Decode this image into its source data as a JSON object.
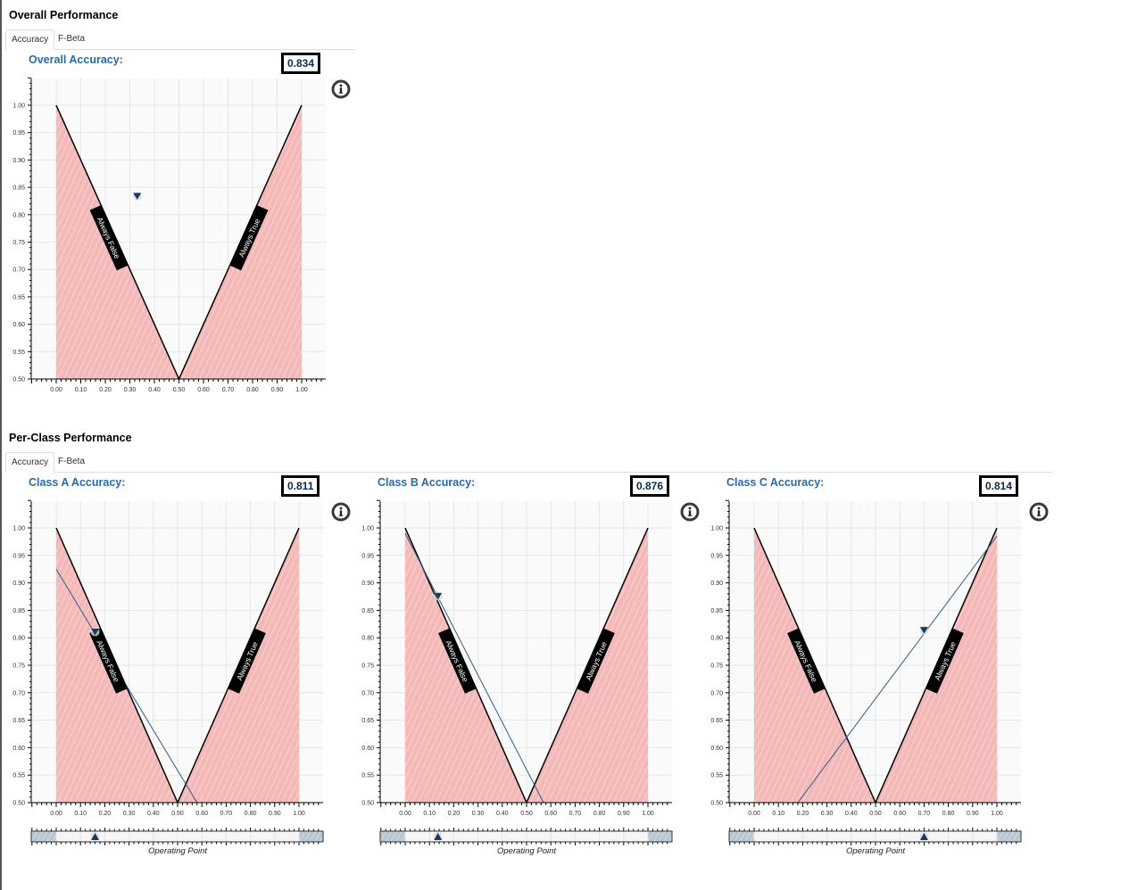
{
  "overall": {
    "section_title": "Overall Performance",
    "tabs": [
      {
        "label": "Accuracy",
        "active": true
      },
      {
        "label": "F-Beta",
        "active": false
      }
    ],
    "panel": {
      "title": "Overall Accuracy:",
      "value": "0.834"
    }
  },
  "per_class": {
    "section_title": "Per-Class Performance",
    "tabs": [
      {
        "label": "Accuracy",
        "active": true
      },
      {
        "label": "F-Beta",
        "active": false
      }
    ],
    "panels": [
      {
        "title": "Class A Accuracy:",
        "value": "0.811"
      },
      {
        "title": "Class B Accuracy:",
        "value": "0.876"
      },
      {
        "title": "Class C Accuracy:",
        "value": "0.814"
      }
    ],
    "slider_label": "Operating Point"
  },
  "annotations": {
    "always_false": "Always False",
    "always_true": "Always True"
  },
  "colors": {
    "accent_title": "#2a6aa8",
    "marker": "#1b3a5c",
    "region_fill": "#f4b8b8",
    "baseline_line": "#000000",
    "model_line": "#2e5d85",
    "slider_track": "#f6f6f6",
    "slider_hatch": "#b8c6d2"
  },
  "chart_data": [
    {
      "type": "line",
      "title": "Overall Accuracy",
      "xlabel": "",
      "ylabel": "",
      "xlim": [
        -0.1,
        1.1
      ],
      "ylim": [
        0.5,
        1.05
      ],
      "x_ticks": [
        "0.00",
        "0.10",
        "0.20",
        "0.30",
        "0.40",
        "0.50",
        "0.60",
        "0.70",
        "0.80",
        "0.90",
        "1.00"
      ],
      "y_ticks": [
        "0.50",
        "0.55",
        "0.60",
        "0.65",
        "0.70",
        "0.75",
        "0.80",
        "0.85",
        "0.90",
        "0.95",
        "1.00"
      ],
      "series": [
        {
          "name": "Always False",
          "x": [
            0,
            0.5
          ],
          "y": [
            1.0,
            0.5
          ]
        },
        {
          "name": "Always True",
          "x": [
            0.5,
            1.0
          ],
          "y": [
            0.5,
            1.0
          ]
        }
      ],
      "marker": {
        "x": 0.33,
        "y": 0.834
      },
      "grid": true
    },
    {
      "type": "line",
      "title": "Class A Accuracy",
      "xlim": [
        -0.1,
        1.1
      ],
      "ylim": [
        0.5,
        1.05
      ],
      "x_ticks": [
        "0.00",
        "0.10",
        "0.20",
        "0.30",
        "0.40",
        "0.50",
        "0.60",
        "0.70",
        "0.80",
        "0.90",
        "1.00"
      ],
      "y_ticks": [
        "0.50",
        "0.55",
        "0.60",
        "0.65",
        "0.70",
        "0.75",
        "0.80",
        "0.85",
        "0.90",
        "0.95",
        "1.00"
      ],
      "series": [
        {
          "name": "Always False",
          "x": [
            0,
            0.5
          ],
          "y": [
            1.0,
            0.5
          ]
        },
        {
          "name": "Always True",
          "x": [
            0.5,
            1.0
          ],
          "y": [
            0.5,
            1.0
          ]
        },
        {
          "name": "Model",
          "x": [
            0,
            0.58
          ],
          "y": [
            0.925,
            0.5
          ]
        }
      ],
      "marker": {
        "x": 0.16,
        "y": 0.811
      },
      "operating_point": 0.16,
      "grid": true
    },
    {
      "type": "line",
      "title": "Class B Accuracy",
      "xlim": [
        -0.1,
        1.1
      ],
      "ylim": [
        0.5,
        1.05
      ],
      "x_ticks": [
        "0.00",
        "0.10",
        "0.20",
        "0.30",
        "0.40",
        "0.50",
        "0.60",
        "0.70",
        "0.80",
        "0.90",
        "1.00"
      ],
      "y_ticks": [
        "0.50",
        "0.55",
        "0.60",
        "0.65",
        "0.70",
        "0.75",
        "0.80",
        "0.85",
        "0.90",
        "0.95",
        "1.00"
      ],
      "series": [
        {
          "name": "Always False",
          "x": [
            0,
            0.5
          ],
          "y": [
            1.0,
            0.5
          ]
        },
        {
          "name": "Always True",
          "x": [
            0.5,
            1.0
          ],
          "y": [
            0.5,
            1.0
          ]
        },
        {
          "name": "Model",
          "x": [
            0,
            0.57
          ],
          "y": [
            0.99,
            0.5
          ]
        }
      ],
      "marker": {
        "x": 0.135,
        "y": 0.876
      },
      "operating_point": 0.135,
      "grid": true
    },
    {
      "type": "line",
      "title": "Class C Accuracy",
      "xlim": [
        -0.1,
        1.1
      ],
      "ylim": [
        0.5,
        1.05
      ],
      "x_ticks": [
        "0.00",
        "0.10",
        "0.20",
        "0.30",
        "0.40",
        "0.50",
        "0.60",
        "0.70",
        "0.80",
        "0.90",
        "1.00"
      ],
      "y_ticks": [
        "0.50",
        "0.55",
        "0.60",
        "0.65",
        "0.70",
        "0.75",
        "0.80",
        "0.85",
        "0.90",
        "0.95",
        "1.00"
      ],
      "series": [
        {
          "name": "Always False",
          "x": [
            0,
            0.5
          ],
          "y": [
            1.0,
            0.5
          ]
        },
        {
          "name": "Always True",
          "x": [
            0.5,
            1.0
          ],
          "y": [
            0.5,
            1.0
          ]
        },
        {
          "name": "Model",
          "x": [
            0.18,
            1.0
          ],
          "y": [
            0.5,
            0.985
          ]
        }
      ],
      "marker": {
        "x": 0.7,
        "y": 0.814
      },
      "operating_point": 0.7,
      "grid": true
    }
  ]
}
